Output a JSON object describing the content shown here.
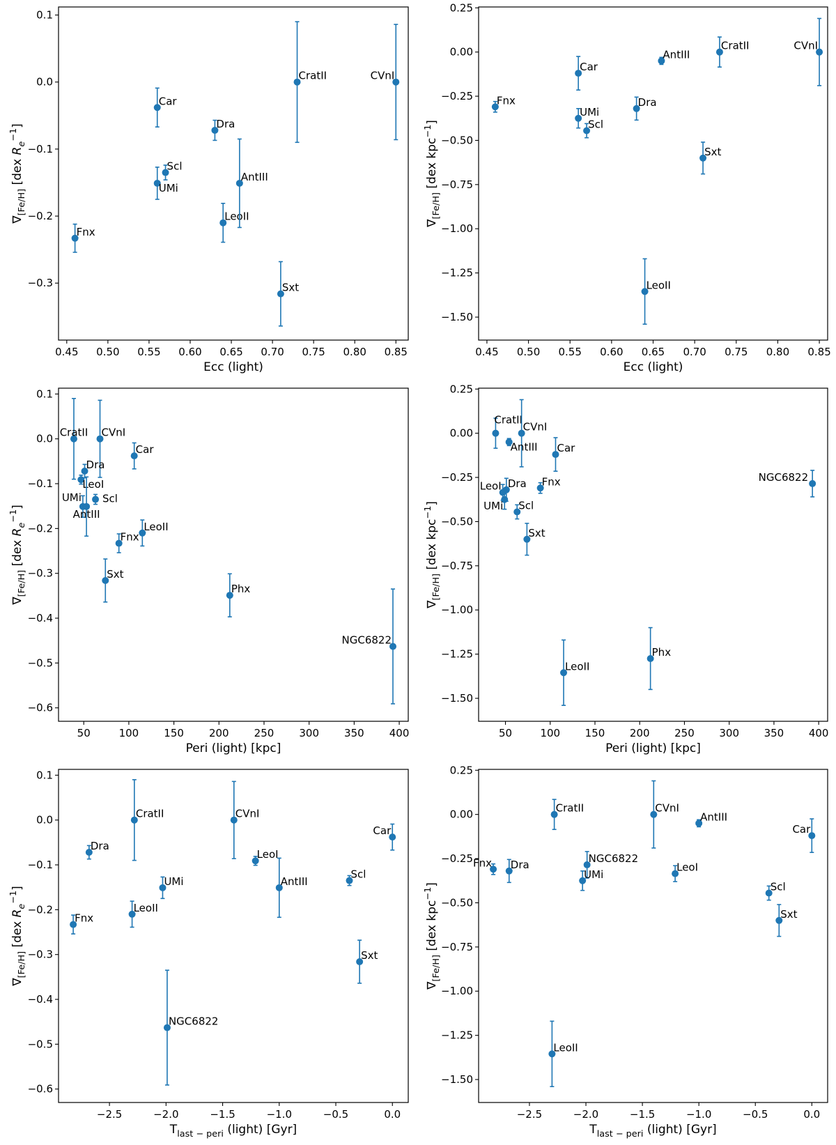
{
  "colors": {
    "marker": "#1f77b4",
    "axes": "#000000",
    "background": "#ffffff"
  },
  "chart_data": [
    {
      "type": "scatter",
      "xlabel": "Ecc (light)",
      "ylabel": "∇[Fe/H] [dex Re⁻¹]",
      "xlim": [
        0.44,
        0.865
      ],
      "ylim": [
        -0.385,
        0.112
      ],
      "xticks": [
        "0.45",
        "0.50",
        "0.55",
        "0.60",
        "0.65",
        "0.70",
        "0.75",
        "0.80",
        "0.85"
      ],
      "xtick_values": [
        0.45,
        0.5,
        0.55,
        0.6,
        0.65,
        0.7,
        0.75,
        0.8,
        0.85
      ],
      "yticks": [
        "0.1",
        "0.0",
        "−0.1",
        "−0.2",
        "−0.3"
      ],
      "ytick_values": [
        0.1,
        0.0,
        -0.1,
        -0.2,
        -0.3
      ],
      "points": [
        {
          "label": "Fnx",
          "x": 0.46,
          "y": -0.233,
          "err": 0.021,
          "anchor": "start",
          "dx": 2,
          "dy": -4
        },
        {
          "label": "Car",
          "x": 0.56,
          "y": -0.038,
          "err": 0.029,
          "anchor": "start",
          "dx": 2,
          "dy": -4
        },
        {
          "label": "UMi",
          "x": 0.56,
          "y": -0.151,
          "err": 0.024,
          "anchor": "start",
          "dx": 2,
          "dy": 12
        },
        {
          "label": "Scl",
          "x": 0.57,
          "y": -0.135,
          "err": 0.011,
          "anchor": "start",
          "dx": 2,
          "dy": -4
        },
        {
          "label": "Dra",
          "x": 0.63,
          "y": -0.072,
          "err": 0.015,
          "anchor": "start",
          "dx": 2,
          "dy": -4
        },
        {
          "label": "LeoII",
          "x": 0.64,
          "y": -0.21,
          "err": 0.029,
          "anchor": "start",
          "dx": 2,
          "dy": -4
        },
        {
          "label": "AntIII",
          "x": 0.66,
          "y": -0.151,
          "err": 0.066,
          "anchor": "start",
          "dx": 2,
          "dy": -4
        },
        {
          "label": "Sxt",
          "x": 0.71,
          "y": -0.316,
          "err": 0.048,
          "anchor": "start",
          "dx": 2,
          "dy": -4
        },
        {
          "label": "CratII",
          "x": 0.73,
          "y": 0.0,
          "err": 0.09,
          "anchor": "start",
          "dx": 2,
          "dy": -4
        },
        {
          "label": "CVnI",
          "x": 0.85,
          "y": 0.0,
          "err": 0.086,
          "anchor": "end",
          "dx": -2,
          "dy": -4
        }
      ]
    },
    {
      "type": "scatter",
      "xlabel": "Ecc (light)",
      "ylabel": "∇[Fe/H] [dex kpc⁻¹]",
      "xlim": [
        0.44,
        0.86
      ],
      "ylim": [
        -1.63,
        0.255
      ],
      "xticks": [
        "0.45",
        "0.50",
        "0.55",
        "0.60",
        "0.65",
        "0.70",
        "0.75",
        "0.80",
        "0.85"
      ],
      "xtick_values": [
        0.45,
        0.5,
        0.55,
        0.6,
        0.65,
        0.7,
        0.75,
        0.8,
        0.85
      ],
      "yticks": [
        "0.25",
        "0.00",
        "−0.25",
        "−0.50",
        "−0.75",
        "−1.00",
        "−1.25",
        "−1.50"
      ],
      "ytick_values": [
        0.25,
        0.0,
        -0.25,
        -0.5,
        -0.75,
        -1.0,
        -1.25,
        -1.5
      ],
      "points": [
        {
          "label": "Fnx",
          "x": 0.46,
          "y": -0.31,
          "err": 0.03,
          "anchor": "start",
          "dx": 2,
          "dy": -4
        },
        {
          "label": "Car",
          "x": 0.56,
          "y": -0.12,
          "err": 0.095,
          "anchor": "start",
          "dx": 2,
          "dy": -4
        },
        {
          "label": "UMi",
          "x": 0.56,
          "y": -0.375,
          "err": 0.055,
          "anchor": "start",
          "dx": 2,
          "dy": -4
        },
        {
          "label": "Scl",
          "x": 0.57,
          "y": -0.445,
          "err": 0.04,
          "anchor": "start",
          "dx": 2,
          "dy": -4
        },
        {
          "label": "Dra",
          "x": 0.63,
          "y": -0.32,
          "err": 0.065,
          "anchor": "start",
          "dx": 2,
          "dy": -4
        },
        {
          "label": "AntIII",
          "x": 0.66,
          "y": -0.05,
          "err": 0.02,
          "anchor": "start",
          "dx": 2,
          "dy": -4
        },
        {
          "label": "LeoII",
          "x": 0.64,
          "y": -1.355,
          "err": 0.185,
          "anchor": "start",
          "dx": 2,
          "dy": -4
        },
        {
          "label": "Sxt",
          "x": 0.71,
          "y": -0.6,
          "err": 0.09,
          "anchor": "start",
          "dx": 2,
          "dy": -4
        },
        {
          "label": "CratII",
          "x": 0.73,
          "y": 0.0,
          "err": 0.085,
          "anchor": "start",
          "dx": 2,
          "dy": -4
        },
        {
          "label": "CVnI",
          "x": 0.85,
          "y": 0.0,
          "err": 0.19,
          "anchor": "end",
          "dx": -2,
          "dy": -4
        }
      ]
    },
    {
      "type": "scatter",
      "xlabel": "Peri (light) [kpc]",
      "ylabel": "∇[Fe/H] [dex Re⁻¹]",
      "xlim": [
        22,
        410
      ],
      "ylim": [
        -0.63,
        0.113
      ],
      "xticks": [
        "50",
        "100",
        "150",
        "200",
        "250",
        "300",
        "350",
        "400"
      ],
      "xtick_values": [
        50,
        100,
        150,
        200,
        250,
        300,
        350,
        400
      ],
      "yticks": [
        "0.1",
        "0.0",
        "−0.1",
        "−0.2",
        "−0.3",
        "−0.4",
        "−0.5",
        "−0.6"
      ],
      "ytick_values": [
        0.1,
        0.0,
        -0.1,
        -0.2,
        -0.3,
        -0.4,
        -0.5,
        -0.6
      ],
      "points": [
        {
          "label": "CratII",
          "x": 39,
          "y": 0.0,
          "err": 0.09,
          "anchor": "middle",
          "dx": 0,
          "dy": -4
        },
        {
          "label": "CVnI",
          "x": 68,
          "y": 0.0,
          "err": 0.086,
          "anchor": "start",
          "dx": 2,
          "dy": -4
        },
        {
          "label": "Car",
          "x": 106,
          "y": -0.038,
          "err": 0.029,
          "anchor": "start",
          "dx": 2,
          "dy": -4
        },
        {
          "label": "Dra",
          "x": 51,
          "y": -0.072,
          "err": 0.015,
          "anchor": "start",
          "dx": 2,
          "dy": -4
        },
        {
          "label": "LeoI",
          "x": 47,
          "y": -0.091,
          "err": 0.01,
          "anchor": "start",
          "dx": 2,
          "dy": 12
        },
        {
          "label": "UMi",
          "x": 49,
          "y": -0.151,
          "err": 0.024,
          "anchor": "end",
          "dx": -2,
          "dy": -8
        },
        {
          "label": "AntIII",
          "x": 53,
          "y": -0.151,
          "err": 0.066,
          "anchor": "middle",
          "dx": 0,
          "dy": 16
        },
        {
          "label": "Scl",
          "x": 63,
          "y": -0.135,
          "err": 0.011,
          "anchor": "start",
          "dx": 10,
          "dy": 4
        },
        {
          "label": "LeoII",
          "x": 115,
          "y": -0.21,
          "err": 0.029,
          "anchor": "start",
          "dx": 2,
          "dy": -4
        },
        {
          "label": "Fnx",
          "x": 89,
          "y": -0.233,
          "err": 0.021,
          "anchor": "start",
          "dx": 2,
          "dy": -4
        },
        {
          "label": "Sxt",
          "x": 74,
          "y": -0.316,
          "err": 0.048,
          "anchor": "start",
          "dx": 2,
          "dy": -4
        },
        {
          "label": "Phx",
          "x": 212,
          "y": -0.349,
          "err": 0.048,
          "anchor": "start",
          "dx": 2,
          "dy": -4
        },
        {
          "label": "NGC6822",
          "x": 393,
          "y": -0.463,
          "err": 0.128,
          "anchor": "end",
          "dx": -2,
          "dy": -4
        }
      ]
    },
    {
      "type": "scatter",
      "xlabel": "Peri (light) [kpc]",
      "ylabel": "∇[Fe/H] [dex kpc⁻¹]",
      "xlim": [
        20,
        410
      ],
      "ylim": [
        -1.63,
        0.255
      ],
      "xticks": [
        "50",
        "100",
        "150",
        "200",
        "250",
        "300",
        "350",
        "400"
      ],
      "xtick_values": [
        50,
        100,
        150,
        200,
        250,
        300,
        350,
        400
      ],
      "yticks": [
        "0.25",
        "0.00",
        "−0.25",
        "−0.50",
        "−0.75",
        "−1.00",
        "−1.25",
        "−1.50"
      ],
      "ytick_values": [
        0.25,
        0.0,
        -0.25,
        -0.5,
        -0.75,
        -1.0,
        -1.25,
        -1.5
      ],
      "points": [
        {
          "label": "CratII",
          "x": 39,
          "y": 0.0,
          "err": 0.085,
          "anchor": "start",
          "dx": -2,
          "dy": -14
        },
        {
          "label": "CVnI",
          "x": 68,
          "y": 0.0,
          "err": 0.19,
          "anchor": "start",
          "dx": 2,
          "dy": -4
        },
        {
          "label": "AntIII",
          "x": 54,
          "y": -0.05,
          "err": 0.02,
          "anchor": "start",
          "dx": 2,
          "dy": 12
        },
        {
          "label": "Car",
          "x": 106,
          "y": -0.12,
          "err": 0.095,
          "anchor": "start",
          "dx": 2,
          "dy": -4
        },
        {
          "label": "LeoI",
          "x": 47,
          "y": -0.335,
          "err": 0.045,
          "anchor": "end",
          "dx": -2,
          "dy": -4
        },
        {
          "label": "Dra",
          "x": 51,
          "y": -0.32,
          "err": 0.065,
          "anchor": "start",
          "dx": 2,
          "dy": -4
        },
        {
          "label": "Fnx",
          "x": 89,
          "y": -0.31,
          "err": 0.03,
          "anchor": "start",
          "dx": 2,
          "dy": -4
        },
        {
          "label": "UMi",
          "x": 49,
          "y": -0.375,
          "err": 0.055,
          "anchor": "end",
          "dx": -2,
          "dy": 14
        },
        {
          "label": "Scl",
          "x": 63,
          "y": -0.445,
          "err": 0.04,
          "anchor": "start",
          "dx": 2,
          "dy": -4
        },
        {
          "label": "Sxt",
          "x": 74,
          "y": -0.6,
          "err": 0.09,
          "anchor": "start",
          "dx": 2,
          "dy": -4
        },
        {
          "label": "NGC6822",
          "x": 393,
          "y": -0.285,
          "err": 0.075,
          "anchor": "end",
          "dx": -6,
          "dy": -4
        },
        {
          "label": "LeoII",
          "x": 115,
          "y": -1.355,
          "err": 0.185,
          "anchor": "start",
          "dx": 2,
          "dy": -4
        },
        {
          "label": "Phx",
          "x": 212,
          "y": -1.275,
          "err": 0.175,
          "anchor": "start",
          "dx": 2,
          "dy": -4
        }
      ]
    },
    {
      "type": "scatter",
      "xlabel": "Tlast−peri (light) [Gyr]",
      "ylabel": "∇[Fe/H] [dex Re⁻¹]",
      "xlim": [
        -2.95,
        0.14
      ],
      "ylim": [
        -0.63,
        0.113
      ],
      "xticks": [
        "−2.5",
        "−2.0",
        "−1.5",
        "−1.0",
        "−0.5",
        "0.0"
      ],
      "xtick_values": [
        -2.5,
        -2.0,
        -1.5,
        -1.0,
        -0.5,
        0.0
      ],
      "yticks": [
        "0.1",
        "0.0",
        "−0.1",
        "−0.2",
        "−0.3",
        "−0.4",
        "−0.5",
        "−0.6"
      ],
      "ytick_values": [
        0.1,
        0.0,
        -0.1,
        -0.2,
        -0.3,
        -0.4,
        -0.5,
        -0.6
      ],
      "points": [
        {
          "label": "CratII",
          "x": -2.28,
          "y": 0.0,
          "err": 0.09,
          "anchor": "start",
          "dx": 2,
          "dy": -4
        },
        {
          "label": "CVnI",
          "x": -1.4,
          "y": 0.0,
          "err": 0.086,
          "anchor": "start",
          "dx": 2,
          "dy": -4
        },
        {
          "label": "Car",
          "x": 0.0,
          "y": -0.038,
          "err": 0.029,
          "anchor": "end",
          "dx": -2,
          "dy": -4
        },
        {
          "label": "Dra",
          "x": -2.68,
          "y": -0.072,
          "err": 0.015,
          "anchor": "start",
          "dx": 2,
          "dy": -4
        },
        {
          "label": "LeoI",
          "x": -1.21,
          "y": -0.091,
          "err": 0.01,
          "anchor": "start",
          "dx": 2,
          "dy": -4
        },
        {
          "label": "UMi",
          "x": -2.03,
          "y": -0.151,
          "err": 0.024,
          "anchor": "start",
          "dx": 2,
          "dy": -4
        },
        {
          "label": "AntIII",
          "x": -1.0,
          "y": -0.151,
          "err": 0.066,
          "anchor": "start",
          "dx": 2,
          "dy": -4
        },
        {
          "label": "Scl",
          "x": -0.38,
          "y": -0.135,
          "err": 0.011,
          "anchor": "start",
          "dx": 2,
          "dy": -4
        },
        {
          "label": "LeoII",
          "x": -2.3,
          "y": -0.21,
          "err": 0.029,
          "anchor": "start",
          "dx": 2,
          "dy": -4
        },
        {
          "label": "Fnx",
          "x": -2.82,
          "y": -0.233,
          "err": 0.021,
          "anchor": "start",
          "dx": 2,
          "dy": -4
        },
        {
          "label": "Sxt",
          "x": -0.29,
          "y": -0.316,
          "err": 0.048,
          "anchor": "start",
          "dx": 2,
          "dy": -4
        },
        {
          "label": "NGC6822",
          "x": -1.99,
          "y": -0.463,
          "err": 0.128,
          "anchor": "start",
          "dx": 2,
          "dy": -4
        }
      ]
    },
    {
      "type": "scatter",
      "xlabel": "Tlast−peri (light) [Gyr]",
      "ylabel": "∇[Fe/H] [dex kpc⁻¹]",
      "xlim": [
        -2.95,
        0.14
      ],
      "ylim": [
        -1.63,
        0.255
      ],
      "xticks": [
        "−2.5",
        "−2.0",
        "−1.5",
        "−1.0",
        "−0.5",
        "0.0"
      ],
      "xtick_values": [
        -2.5,
        -2.0,
        -1.5,
        -1.0,
        -0.5,
        0.0
      ],
      "yticks": [
        "0.25",
        "0.00",
        "−0.25",
        "−0.50",
        "−0.75",
        "−1.00",
        "−1.25",
        "−1.50"
      ],
      "ytick_values": [
        0.25,
        0.0,
        -0.25,
        -0.5,
        -0.75,
        -1.0,
        -1.25,
        -1.5
      ],
      "points": [
        {
          "label": "CratII",
          "x": -2.28,
          "y": 0.0,
          "err": 0.085,
          "anchor": "start",
          "dx": 2,
          "dy": -4
        },
        {
          "label": "CVnI",
          "x": -1.4,
          "y": 0.0,
          "err": 0.19,
          "anchor": "start",
          "dx": 2,
          "dy": -4
        },
        {
          "label": "AntIII",
          "x": -1.0,
          "y": -0.05,
          "err": 0.02,
          "anchor": "start",
          "dx": 2,
          "dy": -4
        },
        {
          "label": "Car",
          "x": 0.0,
          "y": -0.12,
          "err": 0.095,
          "anchor": "end",
          "dx": -2,
          "dy": -4
        },
        {
          "label": "Fnx",
          "x": -2.82,
          "y": -0.31,
          "err": 0.03,
          "anchor": "end",
          "dx": -2,
          "dy": -4
        },
        {
          "label": "Dra",
          "x": -2.68,
          "y": -0.32,
          "err": 0.065,
          "anchor": "start",
          "dx": 2,
          "dy": -4
        },
        {
          "label": "NGC6822",
          "x": -1.99,
          "y": -0.285,
          "err": 0.075,
          "anchor": "start",
          "dx": 2,
          "dy": -4
        },
        {
          "label": "UMi",
          "x": -2.03,
          "y": -0.375,
          "err": 0.055,
          "anchor": "start",
          "dx": 2,
          "dy": -4
        },
        {
          "label": "LeoI",
          "x": -1.21,
          "y": -0.335,
          "err": 0.045,
          "anchor": "start",
          "dx": 2,
          "dy": -4
        },
        {
          "label": "Scl",
          "x": -0.38,
          "y": -0.445,
          "err": 0.04,
          "anchor": "start",
          "dx": 2,
          "dy": -4
        },
        {
          "label": "Sxt",
          "x": -0.29,
          "y": -0.6,
          "err": 0.09,
          "anchor": "start",
          "dx": 2,
          "dy": -4
        },
        {
          "label": "LeoII",
          "x": -2.3,
          "y": -1.355,
          "err": 0.185,
          "anchor": "start",
          "dx": 2,
          "dy": -4
        }
      ]
    }
  ]
}
